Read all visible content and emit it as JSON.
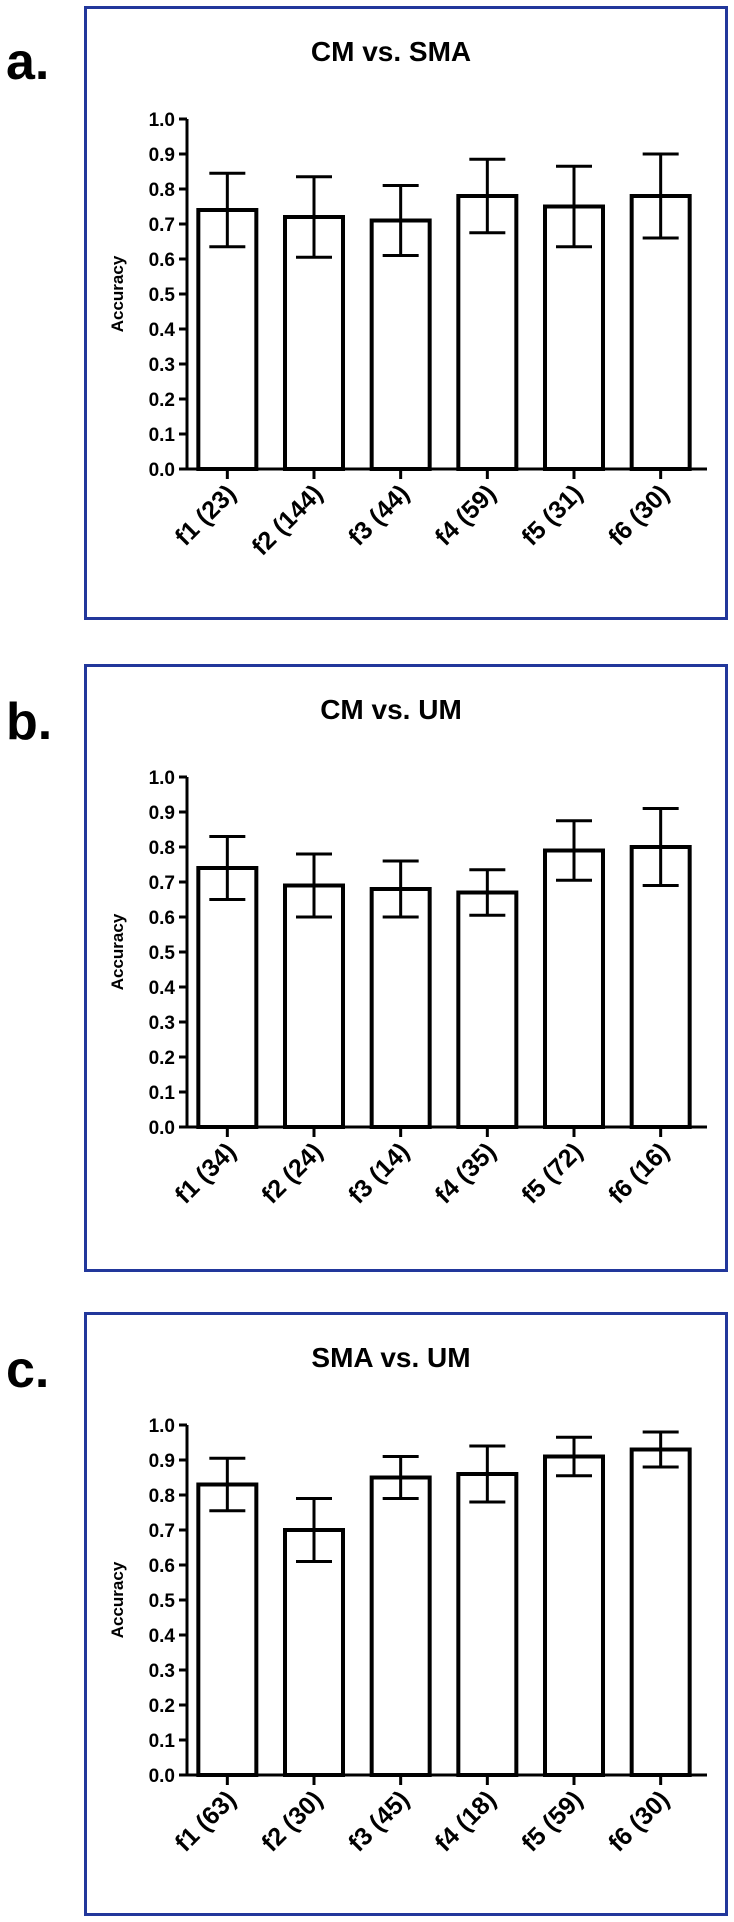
{
  "chart_data": [
    {
      "type": "bar",
      "panel": "a.",
      "title": "CM vs. SMA",
      "ylabel": "Accuracy",
      "xlabel": "",
      "ylim": [
        0,
        1.0
      ],
      "yticks": [
        "0.0",
        "0.1",
        "0.2",
        "0.3",
        "0.4",
        "0.5",
        "0.6",
        "0.7",
        "0.8",
        "0.9",
        "1.0"
      ],
      "categories": [
        "f1 (23)",
        "f2 (144)",
        "f3 (44)",
        "f4 (59)",
        "f5 (31)",
        "f6 (30)"
      ],
      "values": [
        0.74,
        0.72,
        0.71,
        0.78,
        0.75,
        0.78
      ],
      "error": [
        0.105,
        0.115,
        0.1,
        0.105,
        0.115,
        0.12
      ]
    },
    {
      "type": "bar",
      "panel": "b.",
      "title": "CM vs. UM",
      "ylabel": "Accuracy",
      "xlabel": "",
      "ylim": [
        0,
        1.0
      ],
      "yticks": [
        "0.0",
        "0.1",
        "0.2",
        "0.3",
        "0.4",
        "0.5",
        "0.6",
        "0.7",
        "0.8",
        "0.9",
        "1.0"
      ],
      "categories": [
        "f1 (34)",
        "f2 (24)",
        "f3 (14)",
        "f4 (35)",
        "f5 (72)",
        "f6 (16)"
      ],
      "values": [
        0.74,
        0.69,
        0.68,
        0.67,
        0.79,
        0.8
      ],
      "error": [
        0.09,
        0.09,
        0.08,
        0.065,
        0.085,
        0.11
      ]
    },
    {
      "type": "bar",
      "panel": "c.",
      "title": "SMA vs. UM",
      "ylabel": "Accuracy",
      "xlabel": "",
      "ylim": [
        0,
        1.0
      ],
      "yticks": [
        "0.0",
        "0.1",
        "0.2",
        "0.3",
        "0.4",
        "0.5",
        "0.6",
        "0.7",
        "0.8",
        "0.9",
        "1.0"
      ],
      "categories": [
        "f1 (63)",
        "f2 (30)",
        "f3 (45)",
        "f4 (18)",
        "f5 (59)",
        "f6 (30)"
      ],
      "values": [
        0.83,
        0.7,
        0.85,
        0.86,
        0.91,
        0.93
      ],
      "error": [
        0.075,
        0.09,
        0.06,
        0.08,
        0.055,
        0.05
      ]
    }
  ],
  "colors": {
    "panel_border": "#22379b",
    "bar_fill": "#ffffff",
    "bar_stroke": "#000000"
  }
}
